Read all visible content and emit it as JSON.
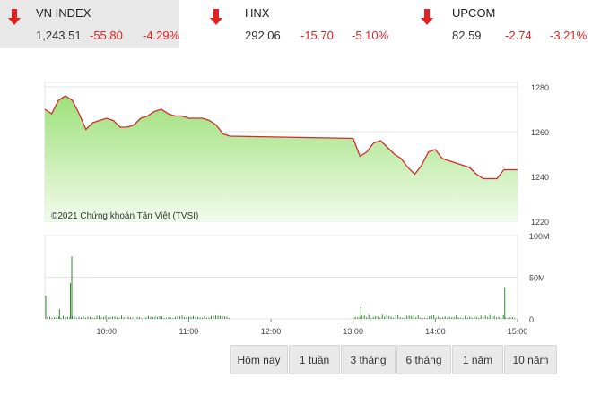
{
  "indices": [
    {
      "name": "VN INDEX",
      "value": "1,243.51",
      "change": "-55.80",
      "percent": "-4.29%",
      "direction": "down",
      "active": true
    },
    {
      "name": "HNX",
      "value": "292.06",
      "change": "-15.70",
      "percent": "-5.10%",
      "direction": "down",
      "active": false
    },
    {
      "name": "UPCOM",
      "value": "82.59",
      "change": "-2.74",
      "percent": "-3.21%",
      "direction": "down",
      "active": false
    }
  ],
  "colors": {
    "down": "#e02424",
    "line": "#d42a2a",
    "area_top": "#9de07a",
    "area_bottom": "#f1fbea",
    "volume": "#2e8b2e",
    "grid": "#e3e3e3"
  },
  "watermark": "©2021 Chứng khoán Tân Việt (TVSI)",
  "chart_data": [
    {
      "type": "area",
      "y_axis_ticks": [
        "1280",
        "1260",
        "1240",
        "1220"
      ],
      "ylim": [
        1220,
        1282
      ],
      "x": [
        "09:15",
        "09:20",
        "09:25",
        "09:30",
        "09:35",
        "09:40",
        "09:45",
        "09:50",
        "09:55",
        "10:00",
        "10:05",
        "10:10",
        "10:15",
        "10:20",
        "10:25",
        "10:30",
        "10:35",
        "10:40",
        "10:45",
        "10:50",
        "10:55",
        "11:00",
        "11:05",
        "11:10",
        "11:15",
        "11:20",
        "11:25",
        "11:30",
        "13:00",
        "13:05",
        "13:10",
        "13:15",
        "13:20",
        "13:25",
        "13:30",
        "13:35",
        "13:40",
        "13:45",
        "13:50",
        "13:55",
        "14:00",
        "14:05",
        "14:10",
        "14:15",
        "14:20",
        "14:25",
        "14:30",
        "14:35",
        "14:40",
        "14:45",
        "14:50",
        "14:55",
        "15:00"
      ],
      "series": [
        {
          "values": [
            1270,
            1268,
            1274,
            1276,
            1274,
            1268,
            1261,
            1264,
            1265,
            1266,
            1265,
            1262,
            1262,
            1263,
            1266,
            1267,
            1269,
            1270,
            1268,
            1267,
            1267,
            1266,
            1266,
            1266,
            1265,
            1263,
            1259,
            1258,
            1257,
            1249,
            1251,
            1255,
            1256,
            1253,
            1250,
            1248,
            1244,
            1241,
            1245,
            1251,
            1252,
            1248,
            1247,
            1246,
            1245,
            1244,
            1241,
            1239,
            1239,
            1239,
            1243,
            1243,
            1243
          ]
        }
      ]
    },
    {
      "type": "bar",
      "y_axis_ticks": [
        "100M",
        "50M",
        "0"
      ],
      "ylim": [
        0,
        100
      ],
      "x_axis_ticks": [
        "10:00",
        "11:00",
        "12:00",
        "13:00",
        "14:00",
        "15:00"
      ],
      "spikes": [
        {
          "x": "09:15",
          "y": 28
        },
        {
          "x": "09:25",
          "y": 12
        },
        {
          "x": "09:33",
          "y": 43
        },
        {
          "x": "09:34",
          "y": 75
        },
        {
          "x": "13:05",
          "y": 14
        },
        {
          "x": "14:50",
          "y": 38
        }
      ]
    }
  ],
  "range_buttons": [
    "Hôm nay",
    "1 tuần",
    "3 tháng",
    "6 tháng",
    "1 năm",
    "10 năm"
  ]
}
